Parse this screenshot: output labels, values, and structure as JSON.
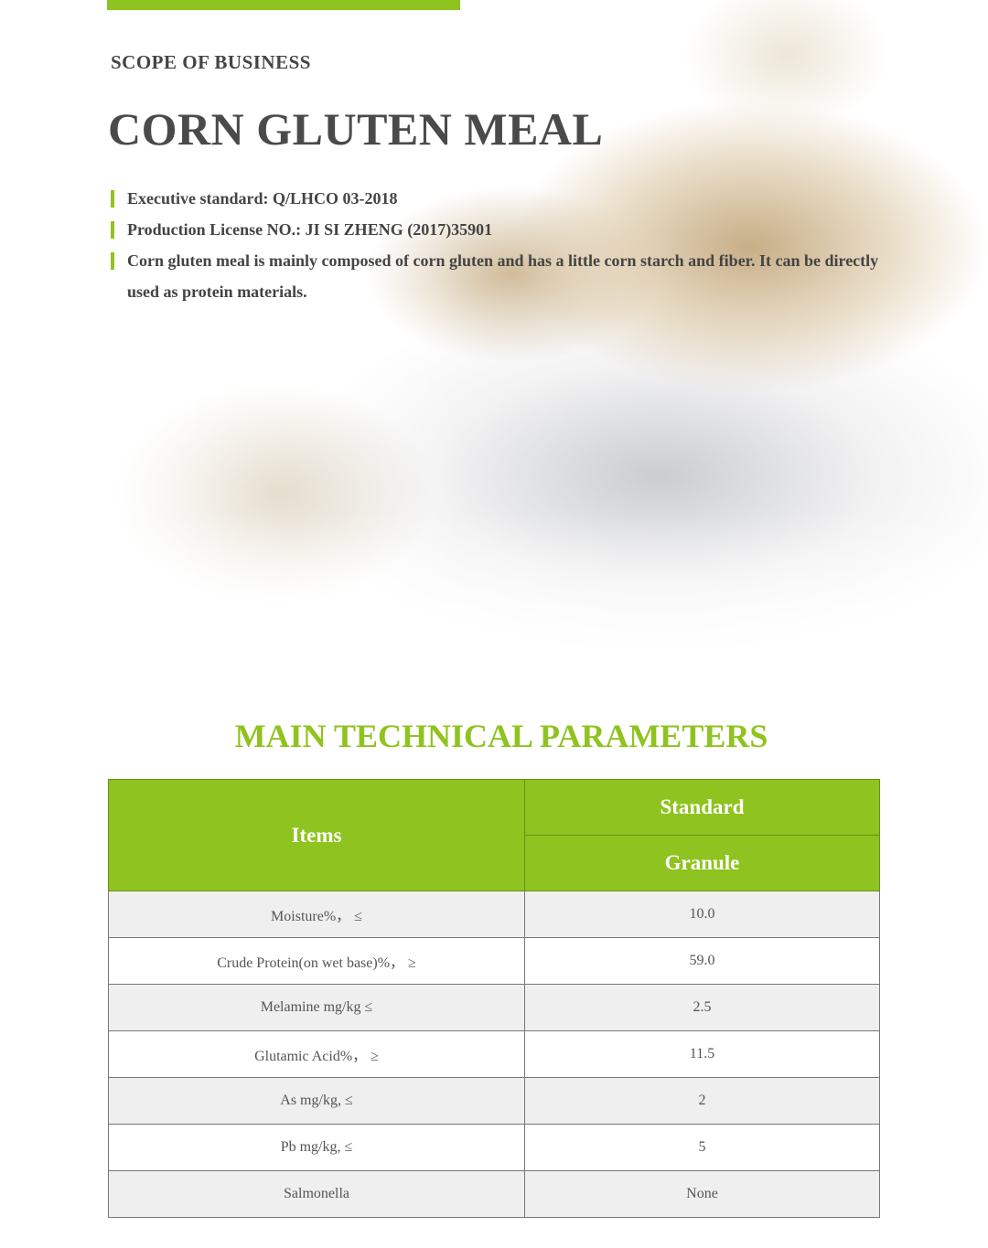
{
  "colors": {
    "accent": "#8fc31f",
    "text": "#444444"
  },
  "hero": {
    "section_label": "SCOPE OF BUSINESS",
    "title": "CORN GLUTEN MEAL",
    "bullets": [
      "Executive standard: Q/LHCO 03-2018",
      "Production License NO.: JI SI ZHENG (2017)35901",
      "Corn gluten meal is mainly composed of corn gluten and has a little corn starch and fiber. It can be directly used as protein materials."
    ]
  },
  "parameters": {
    "heading": "MAIN TECHNICAL PARAMETERS",
    "headers": {
      "items": "Items",
      "standard": "Standard",
      "granule": "Granule"
    },
    "rows": [
      {
        "item": "Moisture%， ≤",
        "value": "10.0"
      },
      {
        "item": "Crude Protein(on wet base)%， ≥",
        "value": "59.0"
      },
      {
        "item": "Melamine mg/kg ≤",
        "value": "2.5"
      },
      {
        "item": "Glutamic Acid%， ≥",
        "value": "11.5"
      },
      {
        "item": "As mg/kg, ≤",
        "value": "2"
      },
      {
        "item": "Pb mg/kg, ≤",
        "value": "5"
      },
      {
        "item": "Salmonella",
        "value": "None"
      }
    ]
  }
}
